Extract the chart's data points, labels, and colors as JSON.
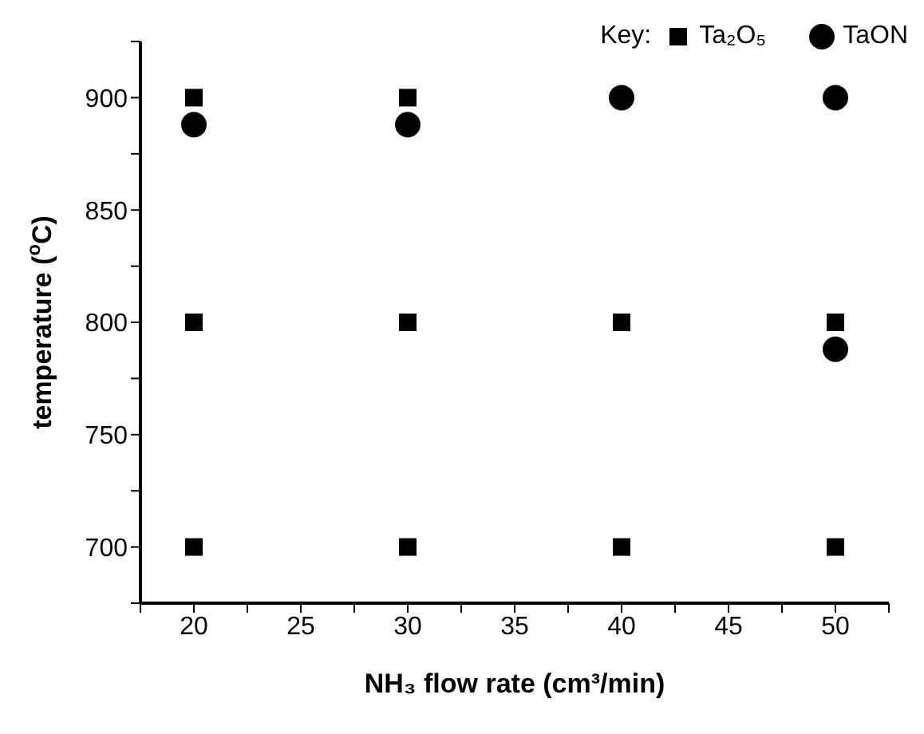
{
  "chart_data": {
    "type": "scatter",
    "xlabel": "NH₃ flow rate (cm³/min)",
    "ylabel": "temperature ($^{o}$C)",
    "legend_title": "Key:",
    "legend": "top right",
    "grid": false,
    "xlim": [
      17.5,
      52.5
    ],
    "xticks": [
      {
        "value": 17.5,
        "label": null
      },
      20,
      {
        "value": 22.5,
        "label": null
      },
      25,
      {
        "value": 27.5,
        "label": null
      },
      30,
      {
        "value": 32.5,
        "label": null
      },
      35,
      {
        "value": 37.5,
        "label": null
      },
      40,
      {
        "value": 42.5,
        "label": null
      },
      45,
      {
        "value": 47.5,
        "label": null
      },
      50,
      {
        "value": 52.5,
        "label": null
      }
    ],
    "ylim": [
      675,
      925
    ],
    "yticks": [
      {
        "value": 675,
        "label": null
      },
      700,
      {
        "value": 725,
        "label": null
      },
      750,
      {
        "value": 775,
        "label": null
      },
      800,
      {
        "value": 825,
        "label": null
      },
      850,
      {
        "value": 875,
        "label": null
      },
      900,
      {
        "value": 925,
        "label": null
      }
    ],
    "series": [
      {
        "name": "Ta₂O₅",
        "color": "#000000",
        "marker": "square",
        "x": [
          20,
          20,
          20,
          30,
          30,
          30,
          40,
          40,
          50,
          50
        ],
        "values": [
          700,
          800,
          900,
          700,
          800,
          900,
          700,
          800,
          700,
          800
        ]
      },
      {
        "name": "TaON",
        "color": "#000000",
        "marker": "circle",
        "x": [
          20,
          30,
          40,
          50,
          50
        ],
        "values": [
          888,
          888,
          900,
          900,
          788
        ]
      }
    ]
  }
}
